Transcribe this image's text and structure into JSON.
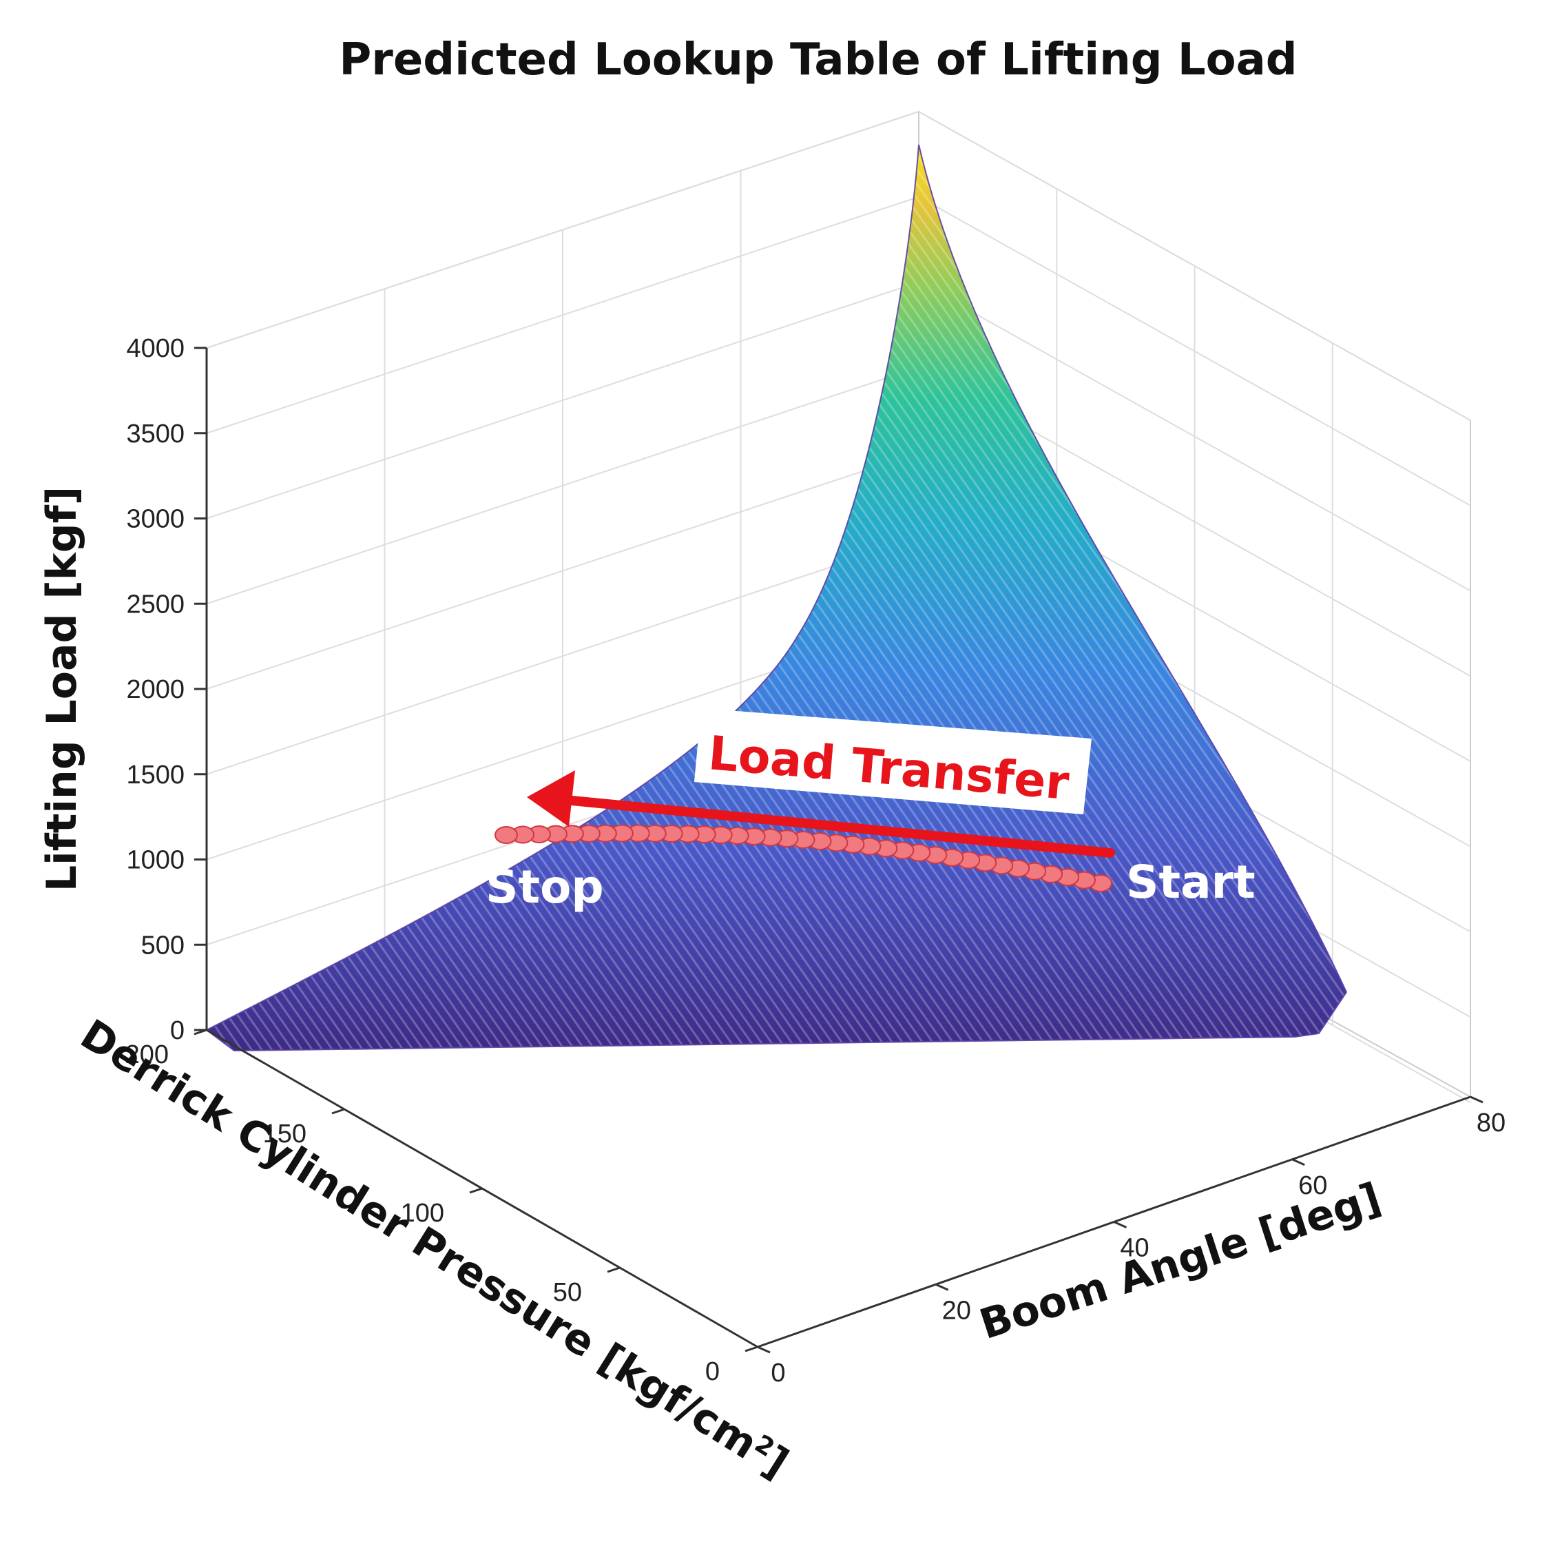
{
  "chart_data": {
    "type": "surface3d",
    "title": "Predicted Lookup Table of Lifting Load",
    "xlabel": "Boom Angle [deg]",
    "ylabel": "Derrick Cylinder Pressure [kgf/cm",
    "ylabel_superscript": "2",
    "ylabel_suffix": "]",
    "zlabel": "Lifting Load [kgf]",
    "xlim": [
      0,
      80
    ],
    "ylim": [
      0,
      200
    ],
    "zlim": [
      0,
      4000
    ],
    "xticks": [
      "0",
      "20",
      "40",
      "60",
      "80"
    ],
    "yticks": [
      "0",
      "50",
      "100",
      "150",
      "200"
    ],
    "zticks": [
      "0",
      "500",
      "1000",
      "1500",
      "2000",
      "2500",
      "3000",
      "3500",
      "4000"
    ],
    "grid": true,
    "colormap": [
      "#3e2a86",
      "#4a58c8",
      "#3a86e0",
      "#25acc8",
      "#2ec39a",
      "#8fcc5c",
      "#e3c43a",
      "#f9e21e"
    ],
    "surface": {
      "description_points": [
        {
          "boom_angle": 0,
          "pressure": 200,
          "load": 0
        },
        {
          "boom_angle": 75,
          "pressure": 0,
          "load": 300
        },
        {
          "boom_angle": 80,
          "pressure": 200,
          "load": 4000
        }
      ]
    },
    "trajectory": {
      "name": "Load Transfer",
      "color": "#f07a80",
      "points": [
        {
          "boom_angle": 72,
          "pressure": 30,
          "load": 950
        },
        {
          "boom_angle": 60,
          "pressure": 60,
          "load": 1000
        },
        {
          "boom_angle": 45,
          "pressure": 95,
          "load": 1030
        },
        {
          "boom_angle": 30,
          "pressure": 130,
          "load": 1050
        },
        {
          "boom_angle": 18,
          "pressure": 160,
          "load": 1080
        }
      ]
    },
    "annotations": {
      "start": "Start",
      "stop": "Stop",
      "transfer": "Load Transfer"
    },
    "arrow_color": "#e8141c"
  }
}
